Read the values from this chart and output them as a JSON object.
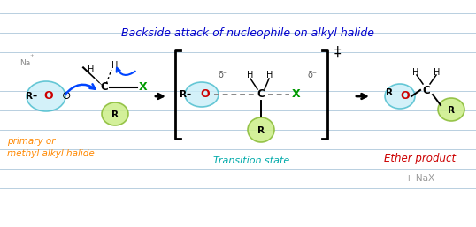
{
  "title": "Backside attack of nucleophile on alkyl halide",
  "title_color": "#0000cc",
  "bg_color": "#ffffff",
  "ruled_line_color": "#b8cfe0",
  "label_primary": "primary or\nmethyl alkyl halide",
  "label_primary_color": "#ff8800",
  "label_transition": "Transition state",
  "label_transition_color": "#00aaaa",
  "label_ether": "Ether product",
  "label_ether_color": "#cc0000",
  "label_nax": "+ NaX",
  "label_nax_color": "#999999",
  "cyan_face": "#c8eef8",
  "cyan_edge": "#44bbcc",
  "green_face": "#ccee88",
  "green_edge": "#88bb33",
  "red_color": "#cc0000",
  "green_x_color": "#009900",
  "blue_arrow": "#0044ff",
  "black": "#000000",
  "gray": "#888888"
}
